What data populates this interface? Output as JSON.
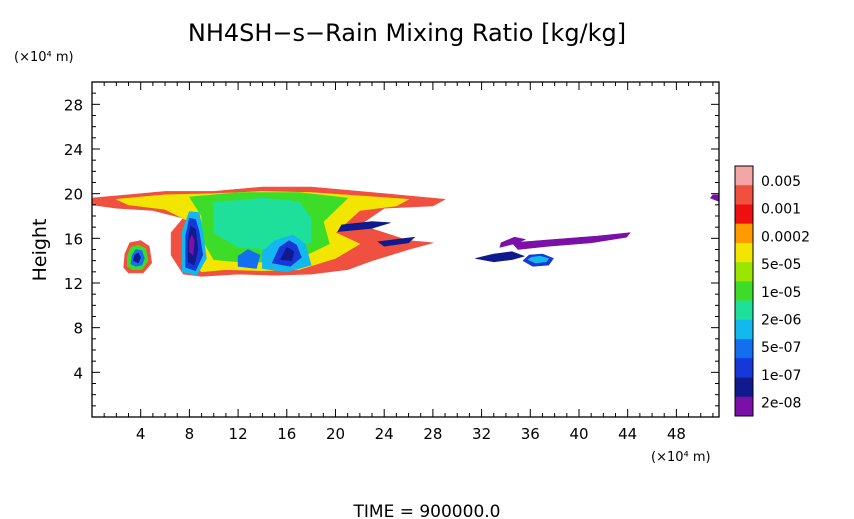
{
  "chart_data": {
    "type": "heatmap",
    "title": "NH4SH−s−Rain Mixing Ratio [kg/kg]",
    "ylabel": "Height",
    "xunit": "(×10⁴ m)",
    "yunit": "(×10⁴ m)",
    "footer": "TIME = 900000.0",
    "xlim": [
      0,
      51.5
    ],
    "ylim": [
      0,
      30
    ],
    "xticks": [
      4,
      8,
      12,
      16,
      20,
      24,
      28,
      32,
      36,
      40,
      44,
      48
    ],
    "yticks": [
      4,
      8,
      12,
      16,
      20,
      24,
      28
    ],
    "colorbar": {
      "labels": [
        "0.005",
        "0.001",
        "0.0002",
        "5e-05",
        "1e-05",
        "2e-06",
        "5e-07",
        "1e-07",
        "2e-08"
      ],
      "colors": [
        "#f4a6a6",
        "#f05040",
        "#ee1010",
        "#ff9a00",
        "#f2e600",
        "#9ae600",
        "#3cdc28",
        "#1fe09a",
        "#12b8ee",
        "#1270f0",
        "#1638d8",
        "#101a8c",
        "#7a10a8"
      ]
    },
    "regions": [
      {
        "level": 1,
        "points": [
          [
            0,
            19.6
          ],
          [
            3,
            19.9
          ],
          [
            6,
            20.2
          ],
          [
            10,
            20.2
          ],
          [
            14,
            20.6
          ],
          [
            18,
            20.6
          ],
          [
            22,
            20.2
          ],
          [
            26,
            19.8
          ],
          [
            29,
            19.5
          ],
          [
            28,
            18.9
          ],
          [
            24,
            18.7
          ],
          [
            22,
            17.2
          ],
          [
            26,
            15.8
          ],
          [
            28,
            15.6
          ],
          [
            26,
            15
          ],
          [
            23,
            14
          ],
          [
            21,
            13.2
          ],
          [
            18,
            12.8
          ],
          [
            15,
            12.7
          ],
          [
            12,
            12.8
          ],
          [
            9,
            12.6
          ],
          [
            7.5,
            12.8
          ],
          [
            6.5,
            14.5
          ],
          [
            6.5,
            16.5
          ],
          [
            7.5,
            17.8
          ],
          [
            5,
            18.5
          ],
          [
            2,
            18.7
          ],
          [
            0,
            19
          ]
        ]
      },
      {
        "level": 4,
        "points": [
          [
            2,
            19.5
          ],
          [
            6,
            19.9
          ],
          [
            10,
            20
          ],
          [
            14,
            20.2
          ],
          [
            18,
            20.1
          ],
          [
            22,
            19.8
          ],
          [
            26,
            19.5
          ],
          [
            25,
            18.9
          ],
          [
            22,
            18.5
          ],
          [
            20,
            16.5
          ],
          [
            22,
            15.5
          ],
          [
            20,
            14.2
          ],
          [
            17,
            13.2
          ],
          [
            14,
            13.1
          ],
          [
            11,
            13.2
          ],
          [
            9,
            13
          ],
          [
            8,
            14
          ],
          [
            7.5,
            16
          ],
          [
            8,
            17.5
          ],
          [
            6,
            18.6
          ],
          [
            3,
            19
          ]
        ]
      },
      {
        "level": 6,
        "points": [
          [
            8,
            19.7
          ],
          [
            12,
            20.1
          ],
          [
            17,
            20.1
          ],
          [
            21,
            19.6
          ],
          [
            19,
            17.5
          ],
          [
            19.5,
            15.5
          ],
          [
            17,
            14.2
          ],
          [
            13,
            13.8
          ],
          [
            10,
            14.1
          ],
          [
            9,
            16
          ],
          [
            9,
            18
          ]
        ]
      },
      {
        "level": 7,
        "points": [
          [
            10,
            19.2
          ],
          [
            14,
            19.6
          ],
          [
            17,
            19.3
          ],
          [
            18,
            17.8
          ],
          [
            18,
            15.6
          ],
          [
            15,
            15
          ],
          [
            12,
            15.2
          ],
          [
            10,
            16.5
          ]
        ]
      },
      {
        "level": 8,
        "points": [
          [
            7.4,
            13
          ],
          [
            8.6,
            12.7
          ],
          [
            9.4,
            14.2
          ],
          [
            9.1,
            16.5
          ],
          [
            8.8,
            18.3
          ],
          [
            8,
            18.4
          ],
          [
            7.4,
            16.6
          ]
        ]
      },
      {
        "level": 10,
        "points": [
          [
            7.7,
            13.4
          ],
          [
            8.5,
            13.1
          ],
          [
            9.1,
            14.5
          ],
          [
            8.8,
            16.6
          ],
          [
            8.5,
            17.7
          ],
          [
            8,
            17.8
          ],
          [
            7.7,
            16.2
          ]
        ]
      },
      {
        "level": 11,
        "points": [
          [
            7.9,
            13.9
          ],
          [
            8.4,
            13.6
          ],
          [
            8.7,
            15
          ],
          [
            8.5,
            16.8
          ],
          [
            8.1,
            17.1
          ],
          [
            7.9,
            15.8
          ]
        ]
      },
      {
        "level": 12,
        "points": [
          [
            8,
            14.8
          ],
          [
            8.3,
            14.5
          ],
          [
            8.4,
            15.8
          ],
          [
            8.2,
            16.3
          ],
          [
            8,
            15.8
          ]
        ]
      },
      {
        "level": 8,
        "points": [
          [
            14,
            13.3
          ],
          [
            16,
            13
          ],
          [
            18,
            13.6
          ],
          [
            17.5,
            15.5
          ],
          [
            16.5,
            16.3
          ],
          [
            15,
            15.8
          ],
          [
            14,
            14.8
          ]
        ]
      },
      {
        "level": 10,
        "points": [
          [
            14.8,
            13.8
          ],
          [
            16.3,
            13.5
          ],
          [
            17.2,
            14.3
          ],
          [
            16.8,
            15.4
          ],
          [
            16.2,
            15.8
          ],
          [
            15.4,
            15.2
          ]
        ]
      },
      {
        "level": 11,
        "points": [
          [
            15.5,
            14.1
          ],
          [
            16.4,
            14
          ],
          [
            16.6,
            14.8
          ],
          [
            16,
            15.2
          ]
        ]
      },
      {
        "level": 9,
        "points": [
          [
            12,
            13.5
          ],
          [
            13.5,
            13.3
          ],
          [
            13.8,
            14.5
          ],
          [
            12.8,
            15
          ],
          [
            12,
            14.4
          ]
        ]
      },
      {
        "level": 1,
        "points": [
          [
            2.6,
            13.4
          ],
          [
            3,
            12.9
          ],
          [
            4.2,
            12.9
          ],
          [
            4.9,
            13.8
          ],
          [
            4.7,
            15.3
          ],
          [
            4,
            15.8
          ],
          [
            3.1,
            15.6
          ],
          [
            2.7,
            14.6
          ]
        ]
      },
      {
        "level": 6,
        "points": [
          [
            2.9,
            13.5
          ],
          [
            3.3,
            13.2
          ],
          [
            4.1,
            13.2
          ],
          [
            4.6,
            14
          ],
          [
            4.4,
            15.1
          ],
          [
            3.8,
            15.4
          ],
          [
            3.2,
            15.2
          ],
          [
            2.9,
            14.4
          ]
        ]
      },
      {
        "level": 9,
        "points": [
          [
            3.2,
            13.7
          ],
          [
            3.6,
            13.5
          ],
          [
            4.1,
            13.6
          ],
          [
            4.3,
            14.2
          ],
          [
            4.1,
            14.9
          ],
          [
            3.6,
            15
          ],
          [
            3.3,
            14.5
          ]
        ]
      },
      {
        "level": 11,
        "points": [
          [
            3.4,
            14
          ],
          [
            3.8,
            13.8
          ],
          [
            4,
            14.3
          ],
          [
            3.8,
            14.7
          ],
          [
            3.5,
            14.5
          ]
        ]
      },
      {
        "level": 12,
        "points": [
          [
            34.5,
            15.6
          ],
          [
            38,
            15.9
          ],
          [
            41.5,
            16.2
          ],
          [
            44.2,
            16.5
          ],
          [
            43.9,
            16.1
          ],
          [
            41,
            15.6
          ],
          [
            37.5,
            15.3
          ],
          [
            35,
            15
          ]
        ]
      },
      {
        "level": 12,
        "points": [
          [
            33.5,
            15.2
          ],
          [
            35,
            15.6
          ],
          [
            35.6,
            15.9
          ],
          [
            34.7,
            16.1
          ],
          [
            33.6,
            15.6
          ]
        ]
      },
      {
        "level": 11,
        "points": [
          [
            31.5,
            14.2
          ],
          [
            33,
            14.6
          ],
          [
            34.5,
            14.8
          ],
          [
            35.5,
            14.4
          ],
          [
            34.5,
            14.1
          ],
          [
            33,
            13.9
          ]
        ]
      },
      {
        "level": 10,
        "points": [
          [
            35.4,
            14
          ],
          [
            36.2,
            13.5
          ],
          [
            37.5,
            13.6
          ],
          [
            37.9,
            14.2
          ],
          [
            37,
            14.6
          ],
          [
            35.9,
            14.5
          ]
        ]
      },
      {
        "level": 8,
        "points": [
          [
            35.8,
            14.1
          ],
          [
            36.4,
            13.8
          ],
          [
            37.3,
            13.9
          ],
          [
            37.5,
            14.2
          ],
          [
            36.8,
            14.4
          ],
          [
            36.1,
            14.3
          ]
        ]
      },
      {
        "level": 12,
        "points": [
          [
            50.8,
            19.6
          ],
          [
            51.5,
            19.3
          ],
          [
            51.5,
            19.9
          ],
          [
            51,
            19.9
          ]
        ]
      },
      {
        "level": 11,
        "points": [
          [
            20.2,
            16.6
          ],
          [
            23,
            16.9
          ],
          [
            24.5,
            17.4
          ],
          [
            23,
            17.5
          ],
          [
            20.5,
            17.2
          ]
        ]
      },
      {
        "level": 11,
        "points": [
          [
            23.5,
            15.7
          ],
          [
            26.5,
            16.1
          ],
          [
            26,
            15.6
          ],
          [
            24,
            15.3
          ]
        ]
      }
    ]
  }
}
